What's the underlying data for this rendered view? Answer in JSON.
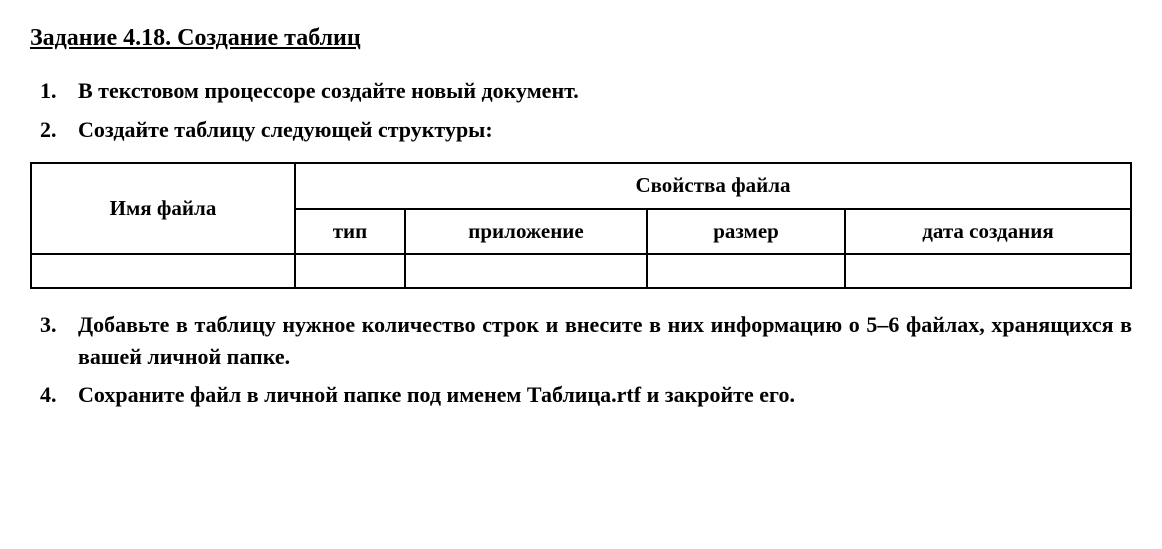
{
  "heading": "Задание 4.18. Создание таблиц",
  "steps_before": [
    {
      "num": "1.",
      "text": "В текстовом процессоре создайте новый документ."
    },
    {
      "num": "2.",
      "text": "Создайте таблицу следующей структуры:"
    }
  ],
  "table": {
    "row1_col1": "Имя файла",
    "row1_col2": "Свойства файла",
    "row2": {
      "type": "тип",
      "app": "приложение",
      "size": "размер",
      "date": "дата создания"
    }
  },
  "steps_after": [
    {
      "num": "3.",
      "text": "Добавьте в таблицу нужное количество строк и внесите в них информацию о 5–6 файлах, хранящихся в вашей личной папке."
    },
    {
      "num": "4.",
      "text": "Сохраните файл в личной папке под именем Таблица.rtf и закройте его."
    }
  ]
}
